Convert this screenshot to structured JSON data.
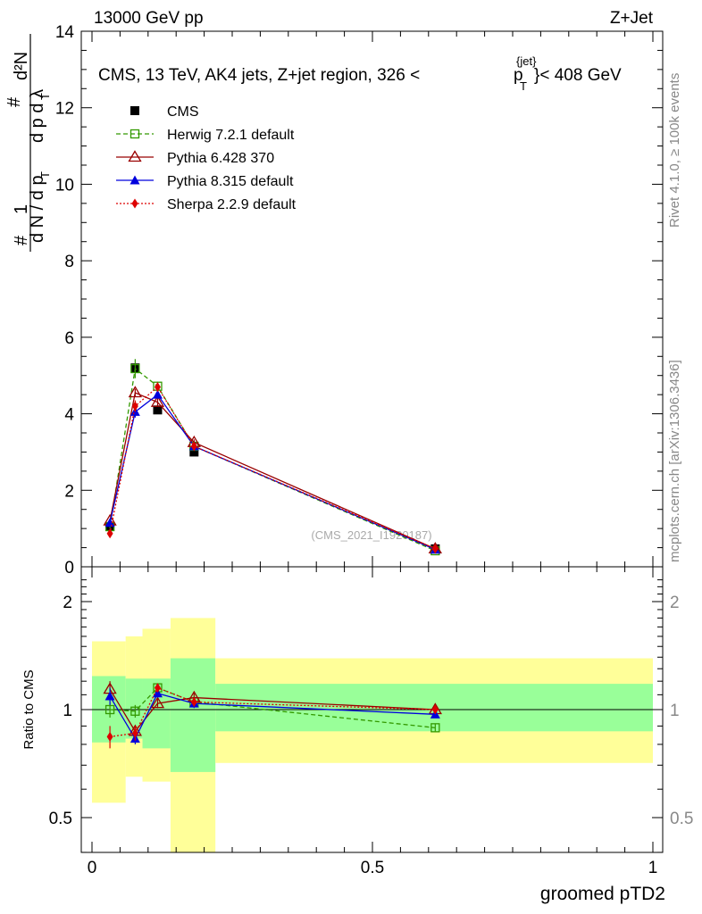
{
  "header": {
    "left": "13000 GeV pp",
    "right": "Z+Jet"
  },
  "side_text": {
    "rivet": "Rivet 4.1.0, ≥ 100k events",
    "mcplots": "mcplots.cern.ch [arXiv:1306.3436]"
  },
  "chart_data": [
    {
      "type": "line",
      "title": "CMS, 13 TeV, AK4 jets, Z+jet region, 326 <",
      "title_pt": "p",
      "title_pt_sub": "T",
      "title_sup": "{jet}",
      "title_end": "}< 408 GeV",
      "ylabel": "1/N dN/dp_T dλ",
      "xlabel": "groomed pTD2",
      "watermark": "(CMS_2021_I1920187)",
      "xlim": [
        0,
        1
      ],
      "ylim": [
        0,
        14
      ],
      "yticks": [
        0,
        2,
        4,
        6,
        8,
        10,
        12,
        14
      ],
      "ytick_labels": [
        "0",
        "2",
        "4",
        "6",
        "8",
        "10",
        "12",
        "14"
      ],
      "x": [
        0.032,
        0.077,
        0.117,
        0.182,
        0.612
      ],
      "series": [
        {
          "name": "CMS",
          "color": "#000000",
          "marker": "square",
          "dash": "",
          "values": [
            1.05,
            5.2,
            4.1,
            3.0,
            0.47
          ],
          "errors": [
            0.05,
            0.12,
            0.1,
            0.08,
            0.03
          ]
        },
        {
          "name": "Herwig 7.2.1 default",
          "color": "#339900",
          "marker": "open-square",
          "dash": "5,3",
          "values": [
            1.05,
            5.18,
            4.72,
            3.15,
            0.42
          ],
          "errors": [
            0.05,
            0.25,
            0.12,
            0.08,
            0.02
          ]
        },
        {
          "name": "Pythia 6.428 370",
          "color": "#990000",
          "marker": "open-triangle",
          "dash": "",
          "values": [
            1.2,
            4.55,
            4.3,
            3.25,
            0.47
          ],
          "errors": [
            0.05,
            0.1,
            0.1,
            0.08,
            0.02
          ]
        },
        {
          "name": "Pythia 8.315 default",
          "color": "#0000dd",
          "marker": "triangle",
          "dash": "",
          "values": [
            1.15,
            4.05,
            4.5,
            3.15,
            0.45
          ],
          "errors": [
            0.05,
            0.15,
            0.1,
            0.08,
            0.02
          ]
        },
        {
          "name": "Sherpa 2.2.9 default",
          "color": "#dd0000",
          "marker": "diamond",
          "dash": "2,2",
          "values": [
            0.87,
            4.2,
            4.7,
            3.15,
            0.47
          ],
          "errors": [
            0.05,
            0.15,
            0.12,
            0.08,
            0.02
          ]
        }
      ]
    },
    {
      "type": "line",
      "title": "Ratio to CMS",
      "ylabel": "Ratio to CMS",
      "xlabel": "groomed pTD2",
      "xlim": [
        0,
        1
      ],
      "ylim": [
        0.35,
        2.35
      ],
      "ylog": true,
      "yticks": [
        0.5,
        1,
        2
      ],
      "ytick_labels": [
        "0.5",
        "1",
        "2"
      ],
      "xticks": [
        0,
        0.5,
        1
      ],
      "xtick_labels": [
        "0",
        "0.5",
        "1"
      ],
      "bands": [
        {
          "x0": 0.0,
          "x1": 0.06,
          "yellow": [
            0.55,
            1.55
          ],
          "green": [
            0.81,
            1.24
          ]
        },
        {
          "x0": 0.06,
          "x1": 0.09,
          "yellow": [
            0.65,
            1.6
          ],
          "green": [
            0.83,
            1.22
          ]
        },
        {
          "x0": 0.09,
          "x1": 0.14,
          "yellow": [
            0.63,
            1.68
          ],
          "green": [
            0.78,
            1.22
          ]
        },
        {
          "x0": 0.14,
          "x1": 0.22,
          "yellow": [
            0.3,
            1.8
          ],
          "green": [
            0.67,
            1.39
          ]
        },
        {
          "x0": 0.22,
          "x1": 1.0,
          "yellow": [
            0.71,
            1.39
          ],
          "green": [
            0.87,
            1.18
          ]
        }
      ],
      "x": [
        0.032,
        0.077,
        0.117,
        0.182,
        0.612
      ],
      "series": [
        {
          "name": "Herwig 7.2.1 default",
          "color": "#339900",
          "marker": "open-square",
          "dash": "5,3",
          "values": [
            1.0,
            0.99,
            1.15,
            1.05,
            0.89
          ],
          "errors": [
            0.05,
            0.04,
            0.03,
            0.03,
            0.02
          ]
        },
        {
          "name": "Pythia 6.428 370",
          "color": "#990000",
          "marker": "open-triangle",
          "dash": "",
          "values": [
            1.14,
            0.87,
            1.04,
            1.08,
            1.0
          ],
          "errors": [
            0.06,
            0.03,
            0.03,
            0.03,
            0.02
          ]
        },
        {
          "name": "Pythia 8.315 default",
          "color": "#0000dd",
          "marker": "triangle",
          "dash": "",
          "values": [
            1.09,
            0.83,
            1.11,
            1.04,
            0.97
          ],
          "errors": [
            0.06,
            0.03,
            0.03,
            0.03,
            0.02
          ]
        },
        {
          "name": "Sherpa 2.2.9 default",
          "color": "#dd0000",
          "marker": "diamond",
          "dash": "2,2",
          "values": [
            0.84,
            0.86,
            1.15,
            1.05,
            1.0
          ],
          "errors": [
            0.06,
            0.04,
            0.03,
            0.03,
            0.02
          ]
        }
      ]
    }
  ]
}
